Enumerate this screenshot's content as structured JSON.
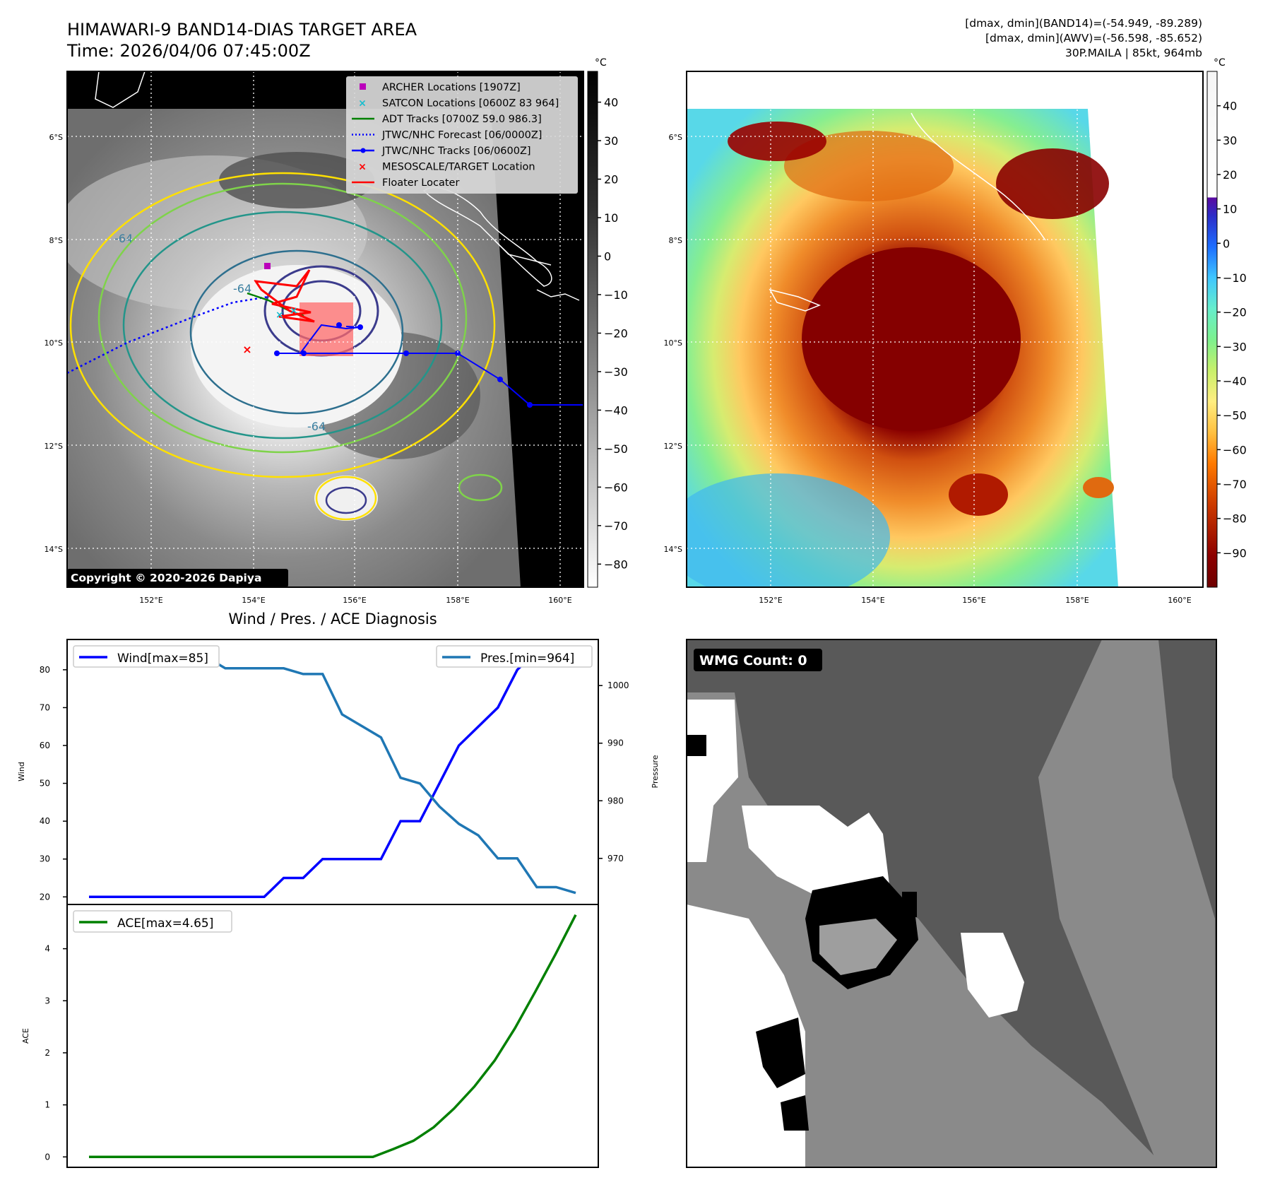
{
  "header": {
    "title_line1": "HIMAWARI-9 BAND14-DIAS TARGET AREA",
    "title_line2": "Time: 2026/04/06 07:45:00Z",
    "info_line1": "[dmax, dmin](BAND14)=(-54.949, -89.289)",
    "info_line2": "[dmax, dmin](AWV)=(-56.598, -85.652)",
    "info_line3": "30P.MAILA | 85kt, 964mb"
  },
  "maps": {
    "lat_labels": [
      "6°S",
      "8°S",
      "10°S",
      "12°S",
      "14°S"
    ],
    "lon_labels": [
      "152°E",
      "154°E",
      "156°E",
      "158°E",
      "160°E"
    ],
    "copyright": "Copyright © 2020-2026 Dapiya",
    "contour_label": "-64",
    "legend": [
      {
        "label": "ARCHER Locations [1907Z]",
        "color": "#bb00bb",
        "kind": "square"
      },
      {
        "label": "SATCON Locations [0600Z 83 964]",
        "color": "#17becf",
        "kind": "x"
      },
      {
        "label": "ADT Tracks [0700Z 59.0 986.3]",
        "color": "#008000",
        "kind": "line"
      },
      {
        "label": "JTWC/NHC Forecast [06/0000Z]",
        "color": "#0000ff",
        "kind": "dotted"
      },
      {
        "label": "JTWC/NHC Tracks [06/0600Z]",
        "color": "#0000ff",
        "kind": "line-dot"
      },
      {
        "label": "MESOSCALE/TARGET Location",
        "color": "#ff0000",
        "kind": "x"
      },
      {
        "label": "Floater Locater",
        "color": "#ff0000",
        "kind": "line"
      }
    ],
    "colorbar_left": {
      "unit": "°C",
      "ticks": [
        "40",
        "30",
        "20",
        "10",
        "0",
        "−10",
        "−20",
        "−30",
        "−40",
        "−50",
        "−60",
        "−70",
        "−80"
      ]
    },
    "colorbar_right": {
      "unit": "°C",
      "ticks": [
        "40",
        "30",
        "20",
        "10",
        "0",
        "−10",
        "−20",
        "−30",
        "−40",
        "−50",
        "−60",
        "−70",
        "−80",
        "−90"
      ]
    },
    "colors": {
      "ocean_black": "#000000",
      "cdo_dark": "#7a0000",
      "land_outline": "#ffffff"
    }
  },
  "chart_data": [
    {
      "type": "line",
      "title": "Wind / Pres. / ACE Diagnosis",
      "xlabel": "",
      "ylabel": "Wind",
      "ylabel2": "Pressure",
      "ylim": [
        18,
        88
      ],
      "y2lim": [
        962,
        1008
      ],
      "y_ticks": [
        20,
        30,
        40,
        50,
        60,
        70,
        80
      ],
      "y2_ticks": [
        970,
        980,
        990,
        1000
      ],
      "series": [
        {
          "name": "Wind[max=85]",
          "axis": "left",
          "color": "#0000ff",
          "values": [
            20,
            20,
            20,
            20,
            20,
            20,
            20,
            20,
            20,
            20,
            25,
            25,
            30,
            30,
            30,
            30,
            40,
            40,
            50,
            60,
            65,
            70,
            80,
            85,
            85,
            85
          ]
        },
        {
          "name": "Pres.[min=964]",
          "axis": "right",
          "color": "#1f77b4",
          "values": [
            1006,
            1006,
            1006,
            1005,
            1005,
            1005,
            1005,
            1003,
            1003,
            1003,
            1003,
            1002,
            1002,
            995,
            993,
            991,
            984,
            983,
            979,
            976,
            974,
            970,
            970,
            965,
            965,
            964
          ]
        }
      ]
    },
    {
      "type": "line",
      "ylabel": "ACE",
      "ylim": [
        -0.2,
        4.85
      ],
      "y_ticks": [
        0,
        1,
        2,
        3,
        4
      ],
      "series": [
        {
          "name": "ACE[max=4.65]",
          "color": "#008000",
          "values": [
            0,
            0,
            0,
            0,
            0,
            0,
            0,
            0,
            0,
            0,
            0,
            0,
            0,
            0,
            0,
            0.15,
            0.31,
            0.57,
            0.93,
            1.35,
            1.85,
            2.47,
            3.17,
            3.89,
            4.65
          ]
        }
      ]
    }
  ],
  "wmg": {
    "label": "WMG Count: 0"
  }
}
